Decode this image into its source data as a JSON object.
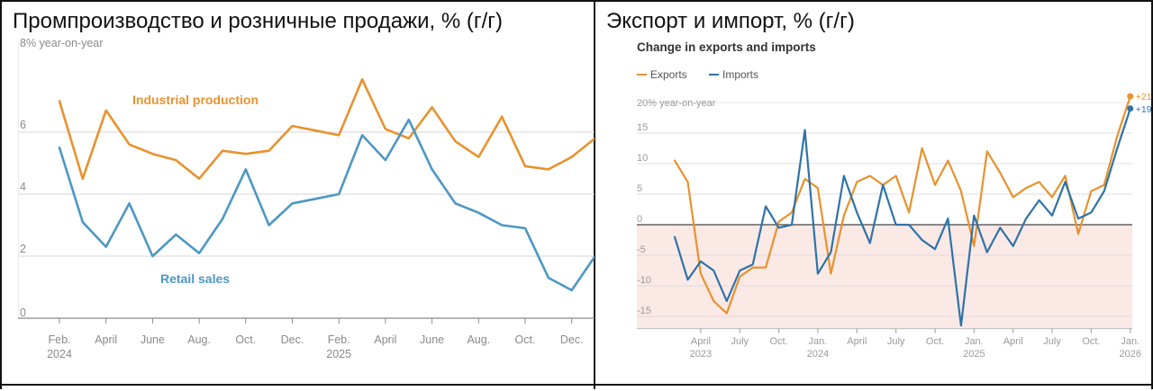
{
  "panels": {
    "left_title": "Промпроизводство и розничные продажи, % (г/г)",
    "right_title": "Экспорт и импорт, % (г/г)"
  },
  "chart_data": [
    {
      "type": "line",
      "unit_label": "8% year-on-year",
      "ylim": [
        0,
        8
      ],
      "yticks": [
        0,
        2,
        4,
        6
      ],
      "grid": true,
      "x_tick_labels": [
        {
          "i": 0,
          "line1": "Feb.",
          "line2": "2024"
        },
        {
          "i": 2,
          "line1": "April",
          "line2": ""
        },
        {
          "i": 4,
          "line1": "June",
          "line2": ""
        },
        {
          "i": 6,
          "line1": "Aug.",
          "line2": ""
        },
        {
          "i": 8,
          "line1": "Oct.",
          "line2": ""
        },
        {
          "i": 10,
          "line1": "Dec.",
          "line2": ""
        },
        {
          "i": 12,
          "line1": "Feb.",
          "line2": "2025"
        },
        {
          "i": 14,
          "line1": "April",
          "line2": ""
        },
        {
          "i": 16,
          "line1": "June",
          "line2": ""
        },
        {
          "i": 18,
          "line1": "Aug.",
          "line2": ""
        },
        {
          "i": 20,
          "line1": "Oct.",
          "line2": ""
        },
        {
          "i": 22,
          "line1": "Dec.",
          "line2": ""
        }
      ],
      "series": [
        {
          "name": "Industrial production",
          "color": "#e8922e",
          "values": [
            7.0,
            4.5,
            6.7,
            5.6,
            5.3,
            5.1,
            4.5,
            5.4,
            5.3,
            5.4,
            6.2,
            6.05,
            5.9,
            7.7,
            6.1,
            5.8,
            6.8,
            5.7,
            5.2,
            6.5,
            4.9,
            4.8,
            5.2,
            5.8
          ]
        },
        {
          "name": "Retail sales",
          "color": "#4d97c4",
          "values": [
            5.5,
            3.1,
            2.3,
            3.7,
            2.0,
            2.7,
            2.1,
            3.2,
            4.8,
            3.0,
            3.7,
            3.85,
            4.0,
            5.9,
            5.1,
            6.4,
            4.8,
            3.7,
            3.4,
            3.0,
            2.9,
            1.3,
            0.9,
            2.0
          ]
        }
      ]
    },
    {
      "type": "line",
      "title": "Change in exports and imports",
      "unit_label": "20% year-on-year",
      "ylim": [
        -17,
        22
      ],
      "yticks": [
        -15,
        -10,
        -5,
        0,
        5,
        10,
        15
      ],
      "grid": true,
      "legend": "top-left",
      "shaded_region": "below-zero",
      "x_tick_labels": [
        {
          "i": 2,
          "line1": "April",
          "line2": "2023"
        },
        {
          "i": 5,
          "line1": "July",
          "line2": ""
        },
        {
          "i": 8,
          "line1": "Oct.",
          "line2": ""
        },
        {
          "i": 11,
          "line1": "Jan.",
          "line2": "2024"
        },
        {
          "i": 14,
          "line1": "April",
          "line2": ""
        },
        {
          "i": 17,
          "line1": "July",
          "line2": ""
        },
        {
          "i": 20,
          "line1": "Oct.",
          "line2": ""
        },
        {
          "i": 23,
          "line1": "Jan.",
          "line2": "2025"
        },
        {
          "i": 26,
          "line1": "April",
          "line2": ""
        },
        {
          "i": 29,
          "line1": "July",
          "line2": ""
        },
        {
          "i": 32,
          "line1": "Oct.",
          "line2": ""
        },
        {
          "i": 35,
          "line1": "Jan.",
          "line2": "2026"
        }
      ],
      "series": [
        {
          "name": "Exports",
          "color": "#e8922e",
          "end_label": "+21",
          "values": [
            10.5,
            7.0,
            -8.0,
            -12.5,
            -14.5,
            -8.5,
            -7.0,
            -7.0,
            0.5,
            2.0,
            7.5,
            6.0,
            -8.0,
            1.5,
            7.0,
            8.0,
            6.5,
            8.0,
            2.0,
            12.5,
            6.5,
            10.5,
            5.5,
            -3.5,
            12.0,
            8.5,
            4.5,
            6.0,
            7.0,
            4.5,
            8.0,
            -1.5,
            5.5,
            6.5,
            14.5,
            21.0
          ]
        },
        {
          "name": "Imports",
          "color": "#2e73a8",
          "end_label": "+19",
          "values": [
            -2.0,
            -9.0,
            -6.0,
            -7.5,
            -12.5,
            -7.5,
            -6.5,
            3.0,
            -0.5,
            0.0,
            15.5,
            -8.0,
            -4.5,
            8.0,
            2.0,
            -3.0,
            6.5,
            0.0,
            0.0,
            -2.5,
            -4.0,
            1.0,
            -16.5,
            1.5,
            -4.5,
            -0.5,
            -3.5,
            1.0,
            4.0,
            1.5,
            7.0,
            1.0,
            2.0,
            5.5,
            12.5,
            19.0
          ]
        }
      ]
    }
  ]
}
